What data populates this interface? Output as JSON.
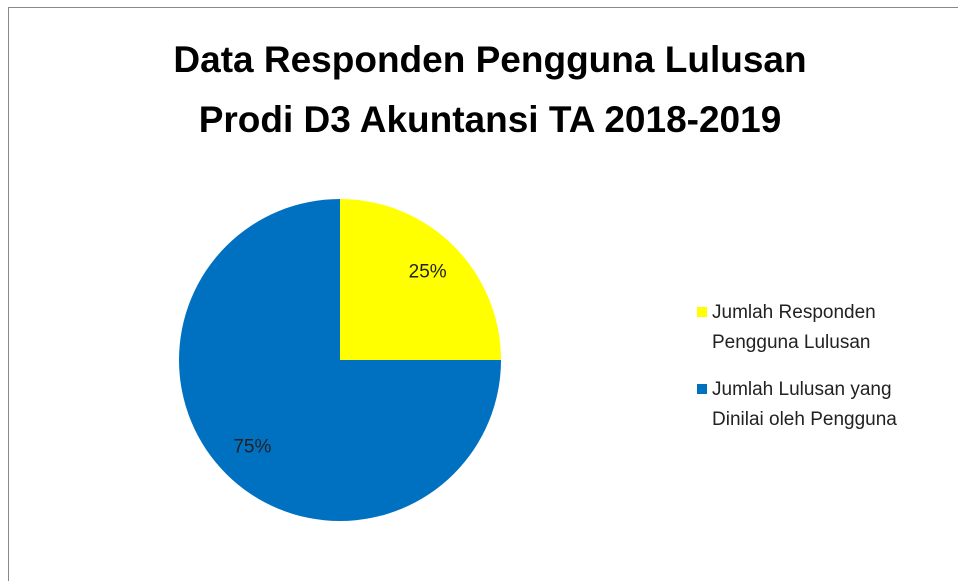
{
  "chart_data": {
    "type": "pie",
    "title": [
      "Data Responden Pengguna Lulusan",
      "Prodi D3 Akuntansi  TA 2018-2019"
    ],
    "categories": [
      "Jumlah Responden Pengguna Lulusan",
      "Jumlah Lulusan yang Dinilai oleh Pengguna"
    ],
    "values": [
      25,
      75
    ],
    "value_labels": [
      "25%",
      "75%"
    ],
    "colors": [
      "#ffff00",
      "#0070c0"
    ],
    "legend": "right"
  }
}
